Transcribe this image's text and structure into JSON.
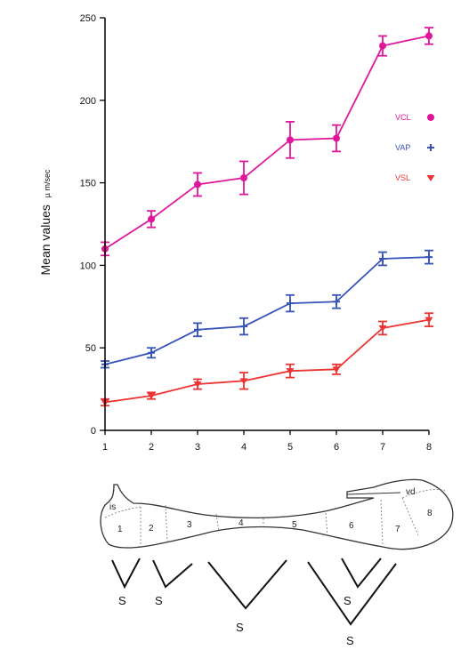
{
  "chart_data": {
    "type": "line",
    "ylabel": "Mean values",
    "ylabel_unit": "µ m/sec",
    "ylim": [
      0,
      250
    ],
    "yticks": [
      0,
      50,
      100,
      150,
      200,
      250
    ],
    "x": [
      1,
      2,
      3,
      4,
      5,
      6,
      7,
      8
    ],
    "series": [
      {
        "name": "VCL",
        "color": "#e0169a",
        "marker": "circle",
        "values": [
          110,
          128,
          149,
          153,
          176,
          177,
          233,
          239
        ],
        "errors": [
          4,
          5,
          7,
          10,
          11,
          8,
          6,
          5
        ]
      },
      {
        "name": "VAP",
        "color": "#3553b8",
        "marker": "plus",
        "values": [
          40,
          47,
          61,
          63,
          77,
          78,
          104,
          105
        ],
        "errors": [
          2,
          3,
          4,
          5,
          5,
          4,
          4,
          4
        ]
      },
      {
        "name": "VSL",
        "color": "#ee3333",
        "marker": "triangle-down",
        "values": [
          17,
          21,
          28,
          30,
          36,
          37,
          62,
          67
        ],
        "errors": [
          2,
          2,
          3,
          5,
          4,
          3,
          4,
          4
        ]
      }
    ],
    "legend": "right",
    "grid": false
  },
  "diagram": {
    "segment_labels": [
      "is",
      "1",
      "2",
      "3",
      "4",
      "5",
      "6",
      "7",
      "vd",
      "8"
    ],
    "groups": [
      "S",
      "S",
      "S",
      "S",
      "S"
    ]
  }
}
